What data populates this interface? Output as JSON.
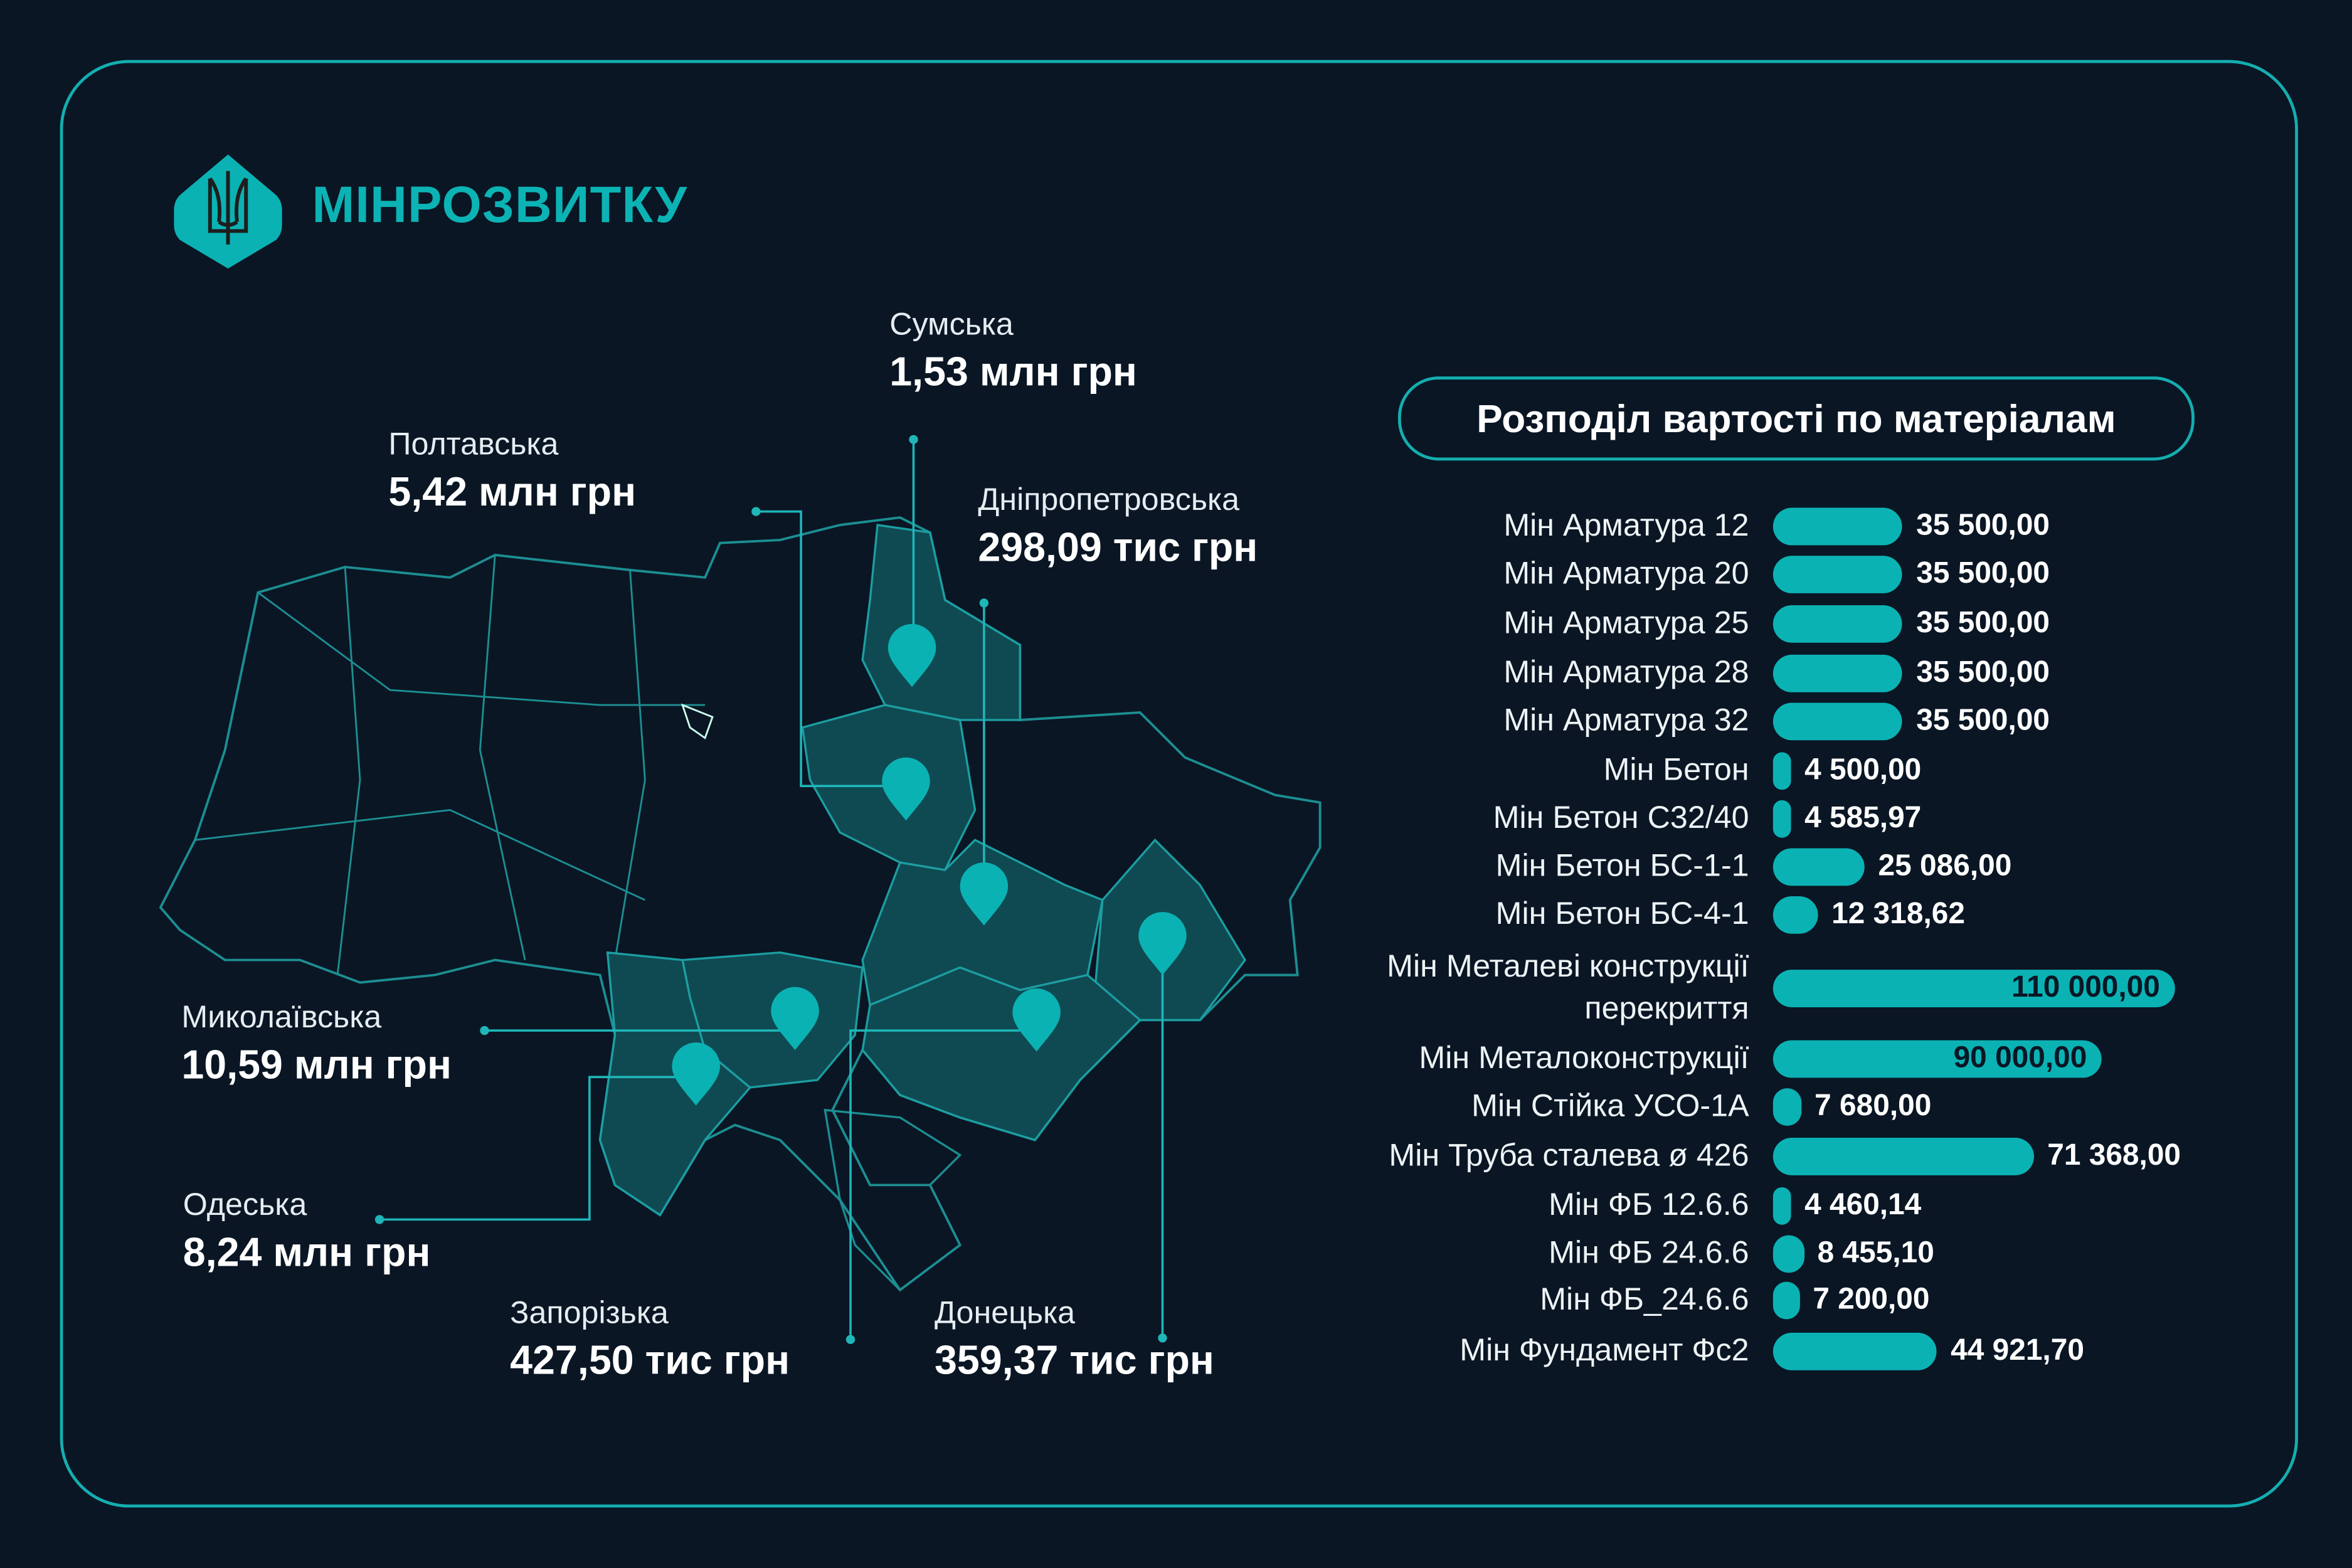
{
  "brand": {
    "name": "МІНРОЗВИТКУ",
    "accent": "#0cb3b5",
    "background": "#0a1624"
  },
  "regions": [
    {
      "name": "Сумська",
      "value": "1,53 млн грн"
    },
    {
      "name": "Полтавська",
      "value": "5,42 млн грн"
    },
    {
      "name": "Дніпропетровська",
      "value": "298,09 тис грн"
    },
    {
      "name": "Миколаївська",
      "value": "10,59 млн грн"
    },
    {
      "name": "Одеська",
      "value": "8,24 млн грн"
    },
    {
      "name": "Запорізька",
      "value": "427,50 тис грн"
    },
    {
      "name": "Донецька",
      "value": "359,37 тис грн"
    }
  ],
  "chart_data": {
    "type": "bar",
    "orientation": "horizontal",
    "title": "Розподіл вартості по матеріалам",
    "categories": [
      "Мін Арматура 12",
      "Мін Арматура 20",
      "Мін Арматура 25",
      "Мін Арматура 28",
      "Мін Арматура 32",
      "Мін Бетон",
      "Мін Бетон С32/40",
      "Мін Бетон БС-1-1",
      "Мін Бетон БС-4-1",
      "Мін Металеві конструкції перекриття",
      "Мін Металоконструкції",
      "Мін Стійка  УСО-1А",
      "Мін Труба сталева ø 426",
      "Мін ФБ 12.6.6",
      "Мін ФБ 24.6.6",
      "Мін ФБ_24.6.6",
      "Мін Фундамент Фс2"
    ],
    "values": [
      35500,
      35500,
      35500,
      35500,
      35500,
      4500,
      4585.97,
      25086,
      12318.62,
      110000,
      90000,
      7680,
      71368,
      4460.14,
      8455.1,
      7200,
      44921.7
    ],
    "labels": [
      "35 500,00",
      "35 500,00",
      "35 500,00",
      "35 500,00",
      "35 500,00",
      "4 500,00",
      "4 585,97",
      "25 086,00",
      "12 318,62",
      "110 000,00",
      "90 000,00",
      "7 680,00",
      "71 368,00",
      "4 460,14",
      "8 455,10",
      "7 200,00",
      "44 921,70"
    ],
    "bar_color": "#0bb2b4"
  }
}
